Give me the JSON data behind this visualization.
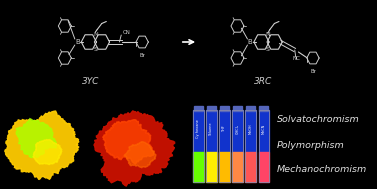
{
  "background_color": "#000000",
  "label_3YC": "3YC",
  "label_3RC": "3RC",
  "arrow_color": "#ffffff",
  "text_lines": [
    "Solvatochromism",
    "Polymorphism",
    "Mechanochromism"
  ],
  "text_color": "#e0e0e0",
  "text_style": "italic",
  "vial_colors": [
    "#66ff00",
    "#ffee00",
    "#ffbb00",
    "#ff8844",
    "#ff5555",
    "#ff4466"
  ],
  "vial_labels": [
    "Cy hexane",
    "Toluene",
    "THF",
    "CHCl₃",
    "MeOH",
    "MeCN"
  ],
  "vial_top_color": "#1133cc",
  "struct_color": "#d0d0d0",
  "struct_lw": 0.8,
  "ring_r": 0.042,
  "mol_scale": 1.0
}
